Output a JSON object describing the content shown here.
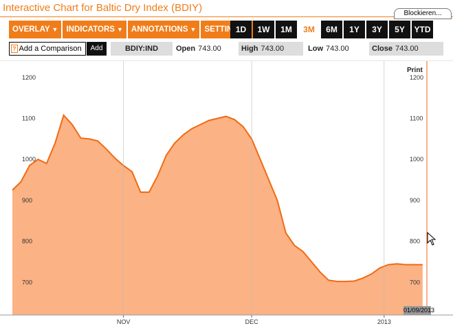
{
  "window": {
    "title": "Interactive Chart for Baltic Dry Index (BDIY)",
    "block_button": "Blockieren..."
  },
  "menu": [
    {
      "label": "OVERLAY",
      "name": "overlay-menu"
    },
    {
      "label": "INDICATORS",
      "name": "indicators-menu"
    },
    {
      "label": "ANNOTATIONS",
      "name": "annotations-menu"
    },
    {
      "label": "SETTINGS",
      "name": "settings-menu"
    }
  ],
  "ranges": [
    "1D",
    "1W",
    "1M",
    "3M",
    "6M",
    "1Y",
    "3Y",
    "5Y",
    "YTD"
  ],
  "active_range": "3M",
  "comparison": {
    "placeholder": "Add a Comparison",
    "add_label": "Add",
    "help_glyph": "?"
  },
  "quote": {
    "ticker": "BDIY:IND",
    "open_label": "Open",
    "open_value": "743.00",
    "high_label": "High",
    "high_value": "743.00",
    "low_label": "Low",
    "low_value": "743.00",
    "close_label": "Close",
    "close_value": "743.00"
  },
  "print_label": "Print",
  "current_date": "01/09/2013",
  "colors": {
    "accent": "#f07d1a",
    "fill": "#fbb284",
    "line": "#f06a12"
  },
  "chart_data": {
    "type": "area",
    "ylim": [
      620,
      1240
    ],
    "yticks": [
      700,
      800,
      900,
      1000,
      1100,
      1200
    ],
    "xlim": [
      "2012-10-06",
      "2013-01-11"
    ],
    "x_labels": [
      {
        "date": "2012-11-01",
        "label": "NOV"
      },
      {
        "date": "2012-12-01",
        "label": "DEC"
      },
      {
        "date": "2013-01-01",
        "label": "2013"
      }
    ],
    "x": [
      "2012-10-06",
      "2012-10-08",
      "2012-10-10",
      "2012-10-12",
      "2012-10-14",
      "2012-10-16",
      "2012-10-18",
      "2012-10-20",
      "2012-10-22",
      "2012-10-24",
      "2012-10-26",
      "2012-10-28",
      "2012-10-30",
      "2012-11-01",
      "2012-11-03",
      "2012-11-05",
      "2012-11-07",
      "2012-11-09",
      "2012-11-11",
      "2012-11-13",
      "2012-11-15",
      "2012-11-17",
      "2012-11-19",
      "2012-11-21",
      "2012-11-23",
      "2012-11-25",
      "2012-11-27",
      "2012-11-29",
      "2012-12-01",
      "2012-12-03",
      "2012-12-05",
      "2012-12-07",
      "2012-12-09",
      "2012-12-11",
      "2012-12-13",
      "2012-12-15",
      "2012-12-17",
      "2012-12-19",
      "2012-12-21",
      "2012-12-23",
      "2012-12-25",
      "2012-12-27",
      "2012-12-29",
      "2012-12-31",
      "2013-01-02",
      "2013-01-04",
      "2013-01-06",
      "2013-01-08",
      "2013-01-10"
    ],
    "values": [
      925,
      945,
      985,
      1000,
      990,
      1040,
      1108,
      1085,
      1052,
      1050,
      1045,
      1025,
      1003,
      985,
      970,
      920,
      920,
      960,
      1010,
      1040,
      1060,
      1075,
      1085,
      1095,
      1100,
      1105,
      1097,
      1080,
      1050,
      1000,
      950,
      900,
      820,
      790,
      775,
      750,
      725,
      705,
      702,
      702,
      703,
      710,
      720,
      735,
      743,
      745,
      743,
      743,
      743
    ]
  }
}
